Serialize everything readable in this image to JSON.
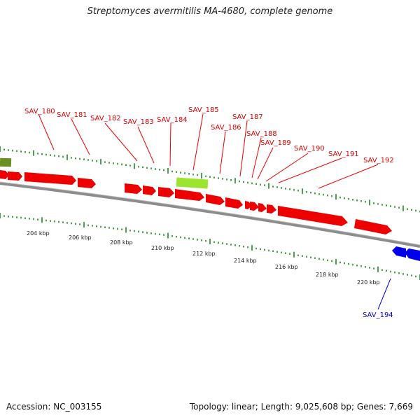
{
  "title": "Streptomyces avermitilis MA-4680, complete genome",
  "footer": {
    "accession": "Accession: NC_003155",
    "summary": "Topology: linear; Length: 9,025,608 bp; Genes: 7,669"
  },
  "colors": {
    "forward_gene": "#ee0000",
    "reverse_gene": "#0000ee",
    "highlight_gene": "#9be52e",
    "olive_gene": "#6b8e23",
    "tick": "#1a8a1a",
    "backbone": "#8c8c8c",
    "label_forward": "#dd0000",
    "label_reverse": "#0000cc"
  },
  "scale_labels": [
    "204 kbp",
    "206 kbp",
    "208 kbp",
    "210 kbp",
    "212 kbp",
    "214 kbp",
    "216 kbp",
    "218 kbp",
    "220 kbp"
  ],
  "gene_labels_top": [
    "SAV_180",
    "SAV_181",
    "SAV_182",
    "SAV_183",
    "SAV_184",
    "SAV_185",
    "SAV_186",
    "SAV_187",
    "SAV_188",
    "SAV_189",
    "SAV_190",
    "SAV_191",
    "SAV_192"
  ],
  "gene_labels_bottom": [
    "SAV_194"
  ]
}
